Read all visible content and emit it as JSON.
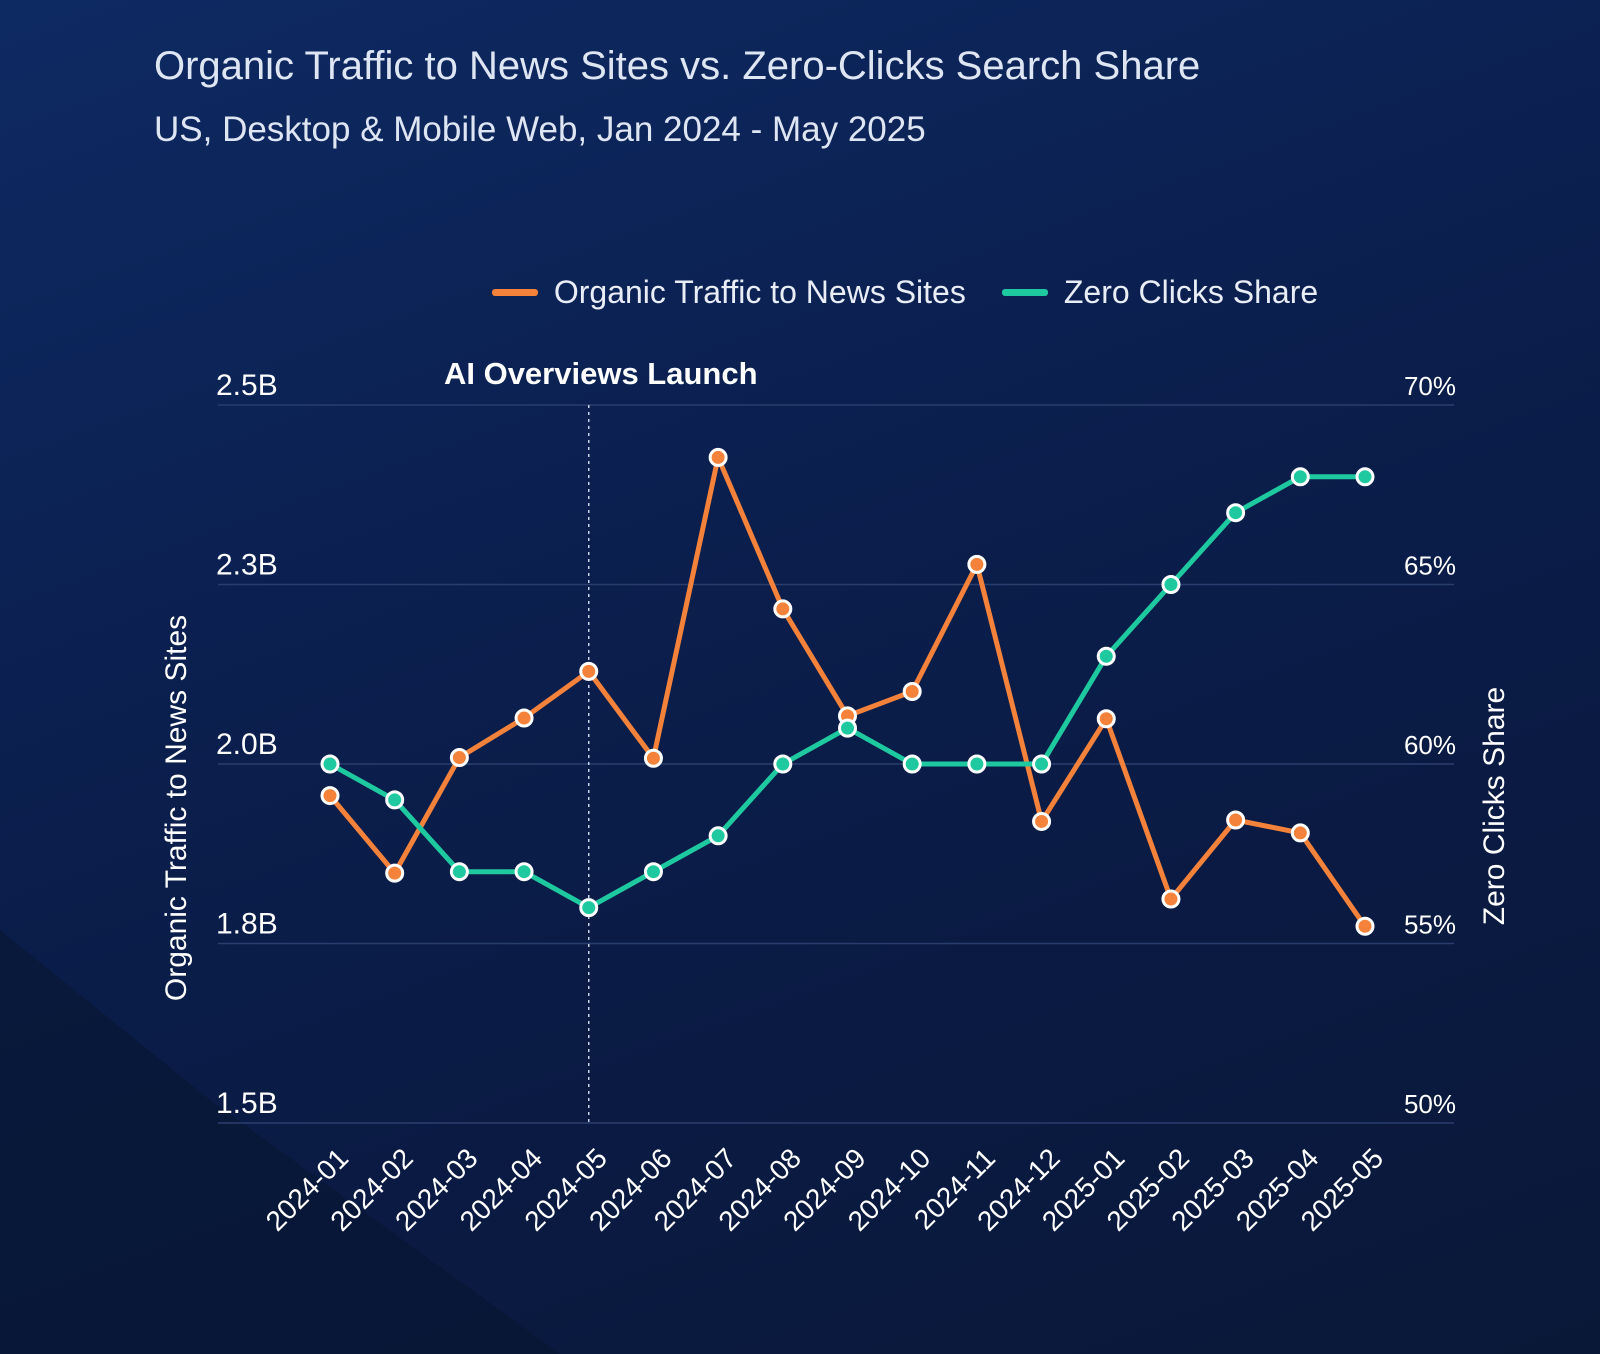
{
  "colors": {
    "traffic": "#f5823a",
    "zero_clicks": "#1fc9a0",
    "grid": "#2a3e6e"
  },
  "header": {
    "title": "Organic Traffic to News Sites vs. Zero-Clicks Search Share",
    "subtitle": "US, Desktop & Mobile Web, Jan 2024 - May 2025"
  },
  "chart_data": {
    "type": "line",
    "title": "Organic Traffic to News Sites vs. Zero-Clicks Search Share",
    "subtitle": "US, Desktop & Mobile Web, Jan 2024 - May 2025",
    "categories": [
      "2024-01",
      "2024-02",
      "2024-03",
      "2024-04",
      "2024-05",
      "2024-06",
      "2024-07",
      "2024-08",
      "2024-09",
      "2024-10",
      "2024-11",
      "2024-12",
      "2025-01",
      "2025-02",
      "2025-03",
      "2025-04",
      "2025-05"
    ],
    "ylabel": "Organic Traffic to News Sites",
    "y2label": "Zero Clicks Share",
    "y_ticks": [
      "2.5B",
      "2.3B",
      "2.0B",
      "1.8B",
      "1.5B"
    ],
    "y2_ticks": [
      "70%",
      "65%",
      "60%",
      "55%",
      "50%"
    ],
    "y2lim": [
      50,
      70
    ],
    "legend_position": "top-center",
    "grid": true,
    "annotation": {
      "label": "AI Overviews Launch",
      "category": "2024-05"
    },
    "series": [
      {
        "name": "Organic Traffic to News Sites",
        "axis": "left",
        "level_fraction": [
          0.456,
          0.348,
          0.509,
          0.564,
          0.629,
          0.508,
          0.927,
          0.716,
          0.567,
          0.601,
          0.778,
          0.42,
          0.563,
          0.312,
          0.422,
          0.404,
          0.274
        ]
      },
      {
        "name": "Zero Clicks Share",
        "axis": "right",
        "values": [
          60,
          59,
          57,
          57,
          56,
          57,
          58,
          60,
          61,
          60,
          60,
          60,
          63,
          65,
          67,
          68,
          68
        ]
      }
    ]
  }
}
